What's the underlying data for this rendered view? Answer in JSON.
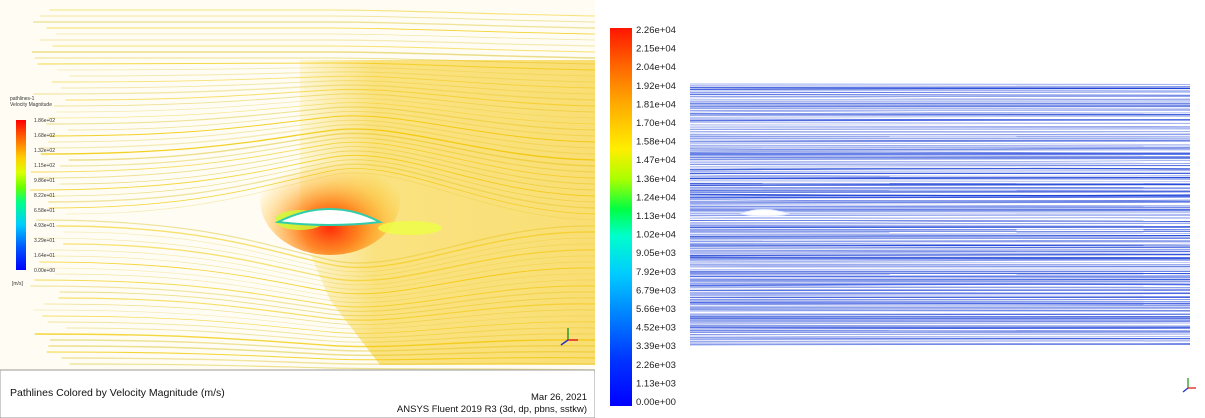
{
  "left": {
    "legend_title_line1": "pathlines-1",
    "legend_title_line2": "Velocity Magnitude",
    "unit": "[m/s]",
    "legend_labels": [
      "1.86e+02",
      "1.68e+02",
      "1.32e+02",
      "1.15e+02",
      "9.86e+01",
      "8.22e+01",
      "6.58e+01",
      "4.93e+01",
      "3.29e+01",
      "1.64e+01",
      "0.00e+00"
    ],
    "footer_title": "Pathlines Colored by Velocity Magnitude (m/s)",
    "footer_date": "Mar 26, 2021",
    "footer_solver": "ANSYS Fluent 2019 R3 (3d, dp, pbns, sstkw)"
  },
  "right": {
    "legend_labels": [
      "2.26e+04",
      "2.15e+04",
      "2.04e+04",
      "1.92e+04",
      "1.81e+04",
      "1.70e+04",
      "1.58e+04",
      "1.47e+04",
      "1.36e+04",
      "1.24e+04",
      "1.13e+04",
      "1.02e+04",
      "9.05e+03",
      "7.92e+03",
      "6.79e+03",
      "5.66e+03",
      "4.52e+03",
      "3.39e+03",
      "2.26e+03",
      "1.13e+03",
      "0.00e+00"
    ]
  },
  "colors": {
    "scale": [
      "#ff0000",
      "#ff3300",
      "#ff6600",
      "#ff9900",
      "#ffcc00",
      "#ffff00",
      "#ccff00",
      "#66ff00",
      "#00ff33",
      "#00ff99",
      "#00ffee",
      "#00ccff",
      "#0099ff",
      "#0066ff",
      "#0033ff",
      "#0000ff"
    ],
    "left_background": "#fffbe6",
    "left_flow": "#f2c200",
    "right_streak": "#1a3fd6"
  }
}
